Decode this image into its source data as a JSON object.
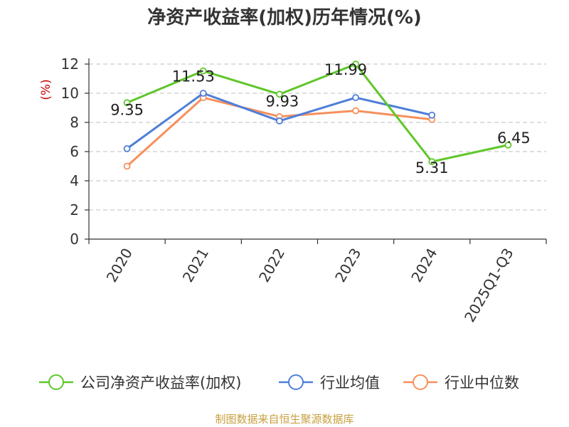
{
  "title": "净资产收益率(加权)历年情况(%)",
  "source": "制图数据来自恒生聚源数据库",
  "colors": {
    "company": "#5fc72b",
    "avg": "#4f7fd8",
    "median": "#f7905c",
    "grid": "#cccccc",
    "ylabel": "#cc0000"
  },
  "chart_data": {
    "type": "line",
    "title": "净资产收益率(加权)历年情况(%)",
    "ylabel": "(%)",
    "xlabel": "",
    "categories": [
      "2020",
      "2021",
      "2022",
      "2023",
      "2024",
      "2025Q1-Q3"
    ],
    "ylim": [
      0,
      12
    ],
    "yticks": [
      0,
      2,
      4,
      6,
      8,
      10,
      12
    ],
    "grid": "horizontal-dashed",
    "legend": "bottom",
    "series": [
      {
        "name": "公司净资产收益率(加权)",
        "color": "#5fc72b",
        "labels": true,
        "values": [
          9.35,
          11.53,
          9.93,
          11.99,
          5.31,
          6.45
        ]
      },
      {
        "name": "行业均值",
        "color": "#4f7fd8",
        "labels": false,
        "values": [
          6.2,
          10.0,
          8.1,
          9.7,
          8.5,
          null
        ]
      },
      {
        "name": "行业中位数",
        "color": "#f7905c",
        "labels": false,
        "values": [
          5.0,
          9.7,
          8.4,
          8.8,
          8.2,
          null
        ]
      }
    ],
    "data_labels": [
      "9.35",
      "11.53",
      "9.93",
      "11.99",
      "5.31",
      "6.45"
    ]
  }
}
